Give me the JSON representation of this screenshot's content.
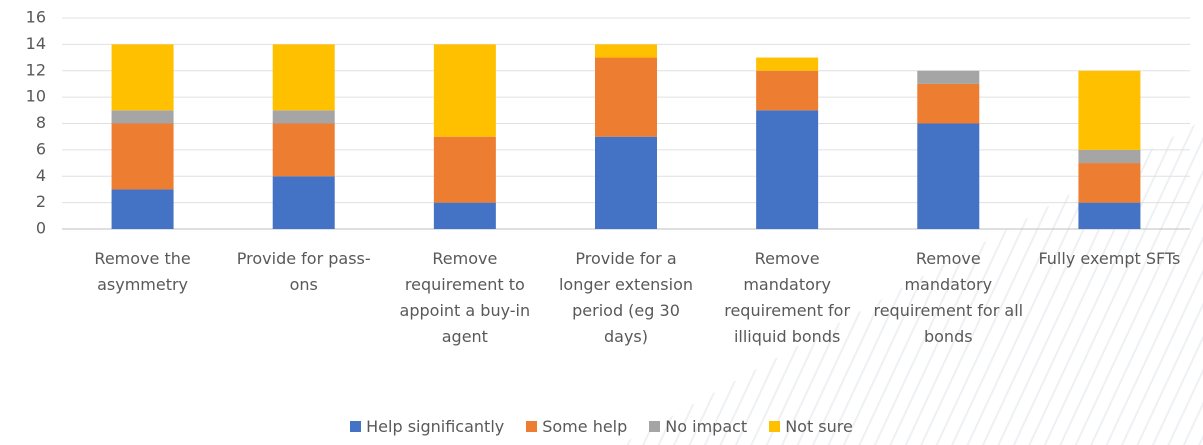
{
  "chart_data": {
    "type": "stacked_bar",
    "categories": [
      "Remove the asymmetry",
      "Provide for pass-ons",
      "Remove requirement to appoint a buy-in agent",
      "Provide for a longer extension period (eg 30 days)",
      "Remove mandatory requirement for illiquid bonds",
      "Remove mandatory requirement for all bonds",
      "Fully exempt SFTs"
    ],
    "series": [
      {
        "name": "Help significantly",
        "color": "#4472c4",
        "values": [
          3,
          4,
          2,
          7,
          9,
          8,
          2
        ]
      },
      {
        "name": "Some help",
        "color": "#ed7d31",
        "values": [
          5,
          4,
          5,
          6,
          3,
          3,
          3
        ]
      },
      {
        "name": "No impact",
        "color": "#a5a5a5",
        "values": [
          1,
          1,
          0,
          0,
          0,
          1,
          1
        ]
      },
      {
        "name": "Not sure",
        "color": "#ffc000",
        "values": [
          5,
          5,
          7,
          1,
          1,
          0,
          6
        ]
      }
    ],
    "ylim": [
      0,
      16
    ],
    "yticks": [
      0,
      2,
      4,
      6,
      8,
      10,
      12,
      14,
      16
    ],
    "grid": true,
    "legend": "bottom"
  }
}
